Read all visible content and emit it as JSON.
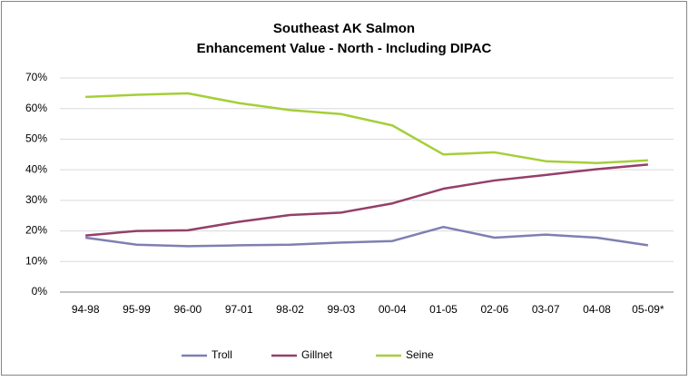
{
  "chart_data": {
    "type": "line",
    "title": "Southeast AK Salmon",
    "subtitle": "Enhancement Value - North - Including DIPAC",
    "categories": [
      "94-98",
      "95-99",
      "96-00",
      "97-01",
      "98-02",
      "99-03",
      "00-04",
      "01-05",
      "02-06",
      "03-07",
      "04-08",
      "05-09*"
    ],
    "series": [
      {
        "name": "Troll",
        "color": "#7f7fb2",
        "values": [
          17.8,
          15.5,
          15,
          15.3,
          15.5,
          16.2,
          16.7,
          21.3,
          17.8,
          18.8,
          17.8,
          15.3
        ]
      },
      {
        "name": "Gillnet",
        "color": "#943f6a",
        "values": [
          18.5,
          20,
          20.2,
          23,
          25.2,
          26,
          29,
          33.8,
          36.5,
          38.3,
          40.2,
          41.7
        ]
      },
      {
        "name": "Seine",
        "color": "#a6ce39",
        "values": [
          63.8,
          64.5,
          65,
          61.8,
          59.5,
          58.2,
          54.5,
          45,
          45.7,
          42.8,
          42.2,
          43.1
        ]
      }
    ],
    "ylim": [
      0,
      70
    ],
    "yticks": [
      {
        "value": 0,
        "label": "0%"
      },
      {
        "value": 10,
        "label": "10%"
      },
      {
        "value": 20,
        "label": "20%"
      },
      {
        "value": 30,
        "label": "30%"
      },
      {
        "value": 40,
        "label": "40%"
      },
      {
        "value": 50,
        "label": "50%"
      },
      {
        "value": 60,
        "label": "60%"
      },
      {
        "value": 70,
        "label": "70%"
      }
    ],
    "grid": true,
    "legend": "bottom"
  }
}
